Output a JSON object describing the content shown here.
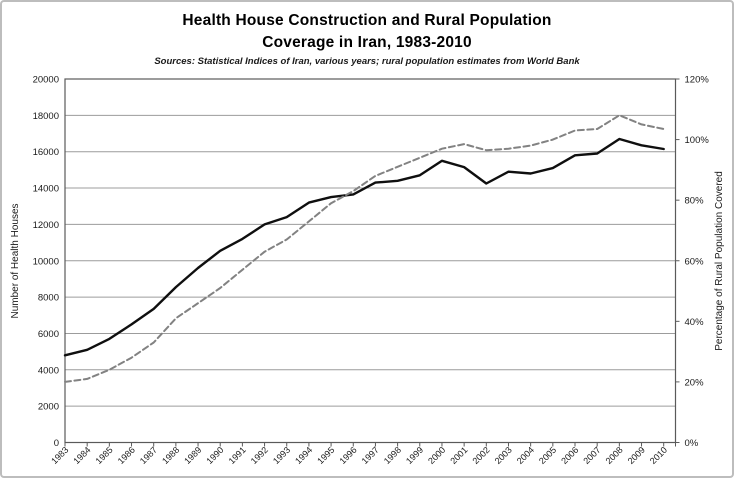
{
  "title_line1": "Health House Construction and Rural Population",
  "title_line2": "Coverage in Iran, 1983-2010",
  "subtitle": "Sources: Statistical Indices of Iran, various years; rural population estimates from World Bank",
  "colors": {
    "health_houses_line": "#0f0f0f",
    "coverage_line": "#828282",
    "gridline": "#9c9c9c",
    "plot_border": "#5a5a5a",
    "tick": "#5a5a5a",
    "text": "#1a1a1a",
    "frame_border": "#bdbdbd"
  },
  "chart_data": {
    "type": "line",
    "title": "Health House Construction and Rural Population Coverage in Iran, 1983-2010",
    "subtitle": "Sources: Statistical Indices of Iran, various years; rural population estimates from World Bank",
    "grid": true,
    "legend_position": "none",
    "categories": [
      "1983",
      "1984",
      "1985",
      "1986",
      "1987",
      "1988",
      "1989",
      "1990",
      "1991",
      "1992",
      "1993",
      "1994",
      "1995",
      "1996",
      "1997",
      "1998",
      "1999",
      "2000",
      "2001",
      "2002",
      "2003",
      "2004",
      "2005",
      "2006",
      "2007",
      "2008",
      "2009",
      "2010"
    ],
    "left_axis": {
      "label": "Number of Health Houses",
      "min": 0,
      "max": 20000,
      "step": 2000,
      "tick_labels": [
        "0",
        "2000",
        "4000",
        "6000",
        "8000",
        "10000",
        "12000",
        "14000",
        "16000",
        "18000",
        "20000"
      ]
    },
    "right_axis": {
      "label": "Percentage of Rural Population Covered",
      "min": 0,
      "max": 120,
      "step": 20,
      "tick_labels": [
        "0%",
        "20%",
        "40%",
        "60%",
        "80%",
        "100%",
        "120%"
      ]
    },
    "series": [
      {
        "name": "Number of Health Houses",
        "axis": "left",
        "style": "solid",
        "values": [
          4800,
          5100,
          5700,
          6500,
          7350,
          8550,
          9600,
          10550,
          11200,
          12000,
          12400,
          13200,
          13500,
          13650,
          14300,
          14400,
          14700,
          15500,
          15150,
          14250,
          14900,
          14800,
          15100,
          15800,
          15900,
          16700,
          16350,
          16150
        ]
      },
      {
        "name": "Percentage of Rural Population Covered",
        "axis": "right",
        "style": "dashed",
        "values": [
          20,
          21,
          24,
          28,
          33,
          41,
          46,
          51,
          57,
          63,
          67,
          73,
          79,
          83,
          88,
          91,
          94,
          97,
          98.5,
          96.5,
          97,
          98,
          100,
          103,
          103.5,
          108,
          105,
          103.5
        ]
      }
    ]
  }
}
